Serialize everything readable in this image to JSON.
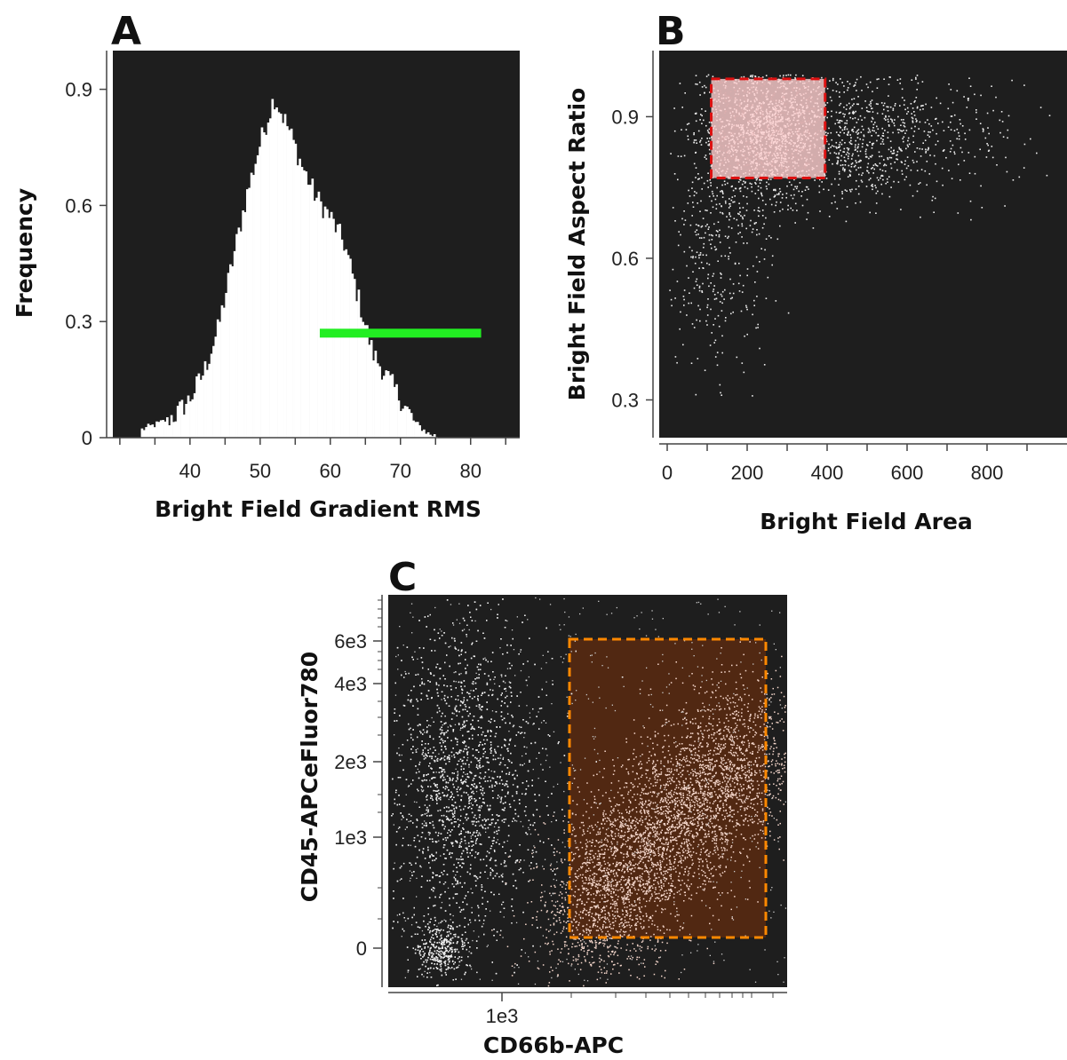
{
  "chart_data": [
    {
      "panel": "A",
      "type": "histogram",
      "xlabel": "Bright Field Gradient RMS",
      "ylabel": "Frequency",
      "xlim": [
        29,
        87
      ],
      "ylim": [
        0,
        1.0
      ],
      "xticks": [
        40,
        50,
        60,
        70,
        80
      ],
      "yticks": [
        0,
        0.3,
        0.6,
        0.9
      ],
      "ytick_labels": [
        "0",
        "0.3",
        "0.6",
        "0.9"
      ],
      "background": "#1e1e1e",
      "fill_color": "#ffffff",
      "distribution": {
        "x": [
          33,
          36,
          38,
          40,
          42,
          44,
          46,
          48,
          50,
          52,
          54,
          56,
          58,
          60,
          62,
          64,
          66,
          68,
          70,
          72,
          74,
          76
        ],
        "y": [
          0.02,
          0.04,
          0.06,
          0.1,
          0.17,
          0.28,
          0.45,
          0.62,
          0.76,
          0.88,
          0.8,
          0.7,
          0.62,
          0.57,
          0.5,
          0.36,
          0.22,
          0.16,
          0.1,
          0.04,
          0.01,
          0.0
        ]
      },
      "gate": {
        "type": "horizontal-bar",
        "x": [
          58.5,
          81.5
        ],
        "y": 0.27,
        "color": "#22ee22"
      }
    },
    {
      "panel": "B",
      "type": "scatter",
      "xlabel": "Bright Field Area",
      "ylabel": "Bright Field Aspect Ratio",
      "xlim": [
        -20,
        1000
      ],
      "ylim": [
        0.22,
        1.04
      ],
      "xticks": [
        0,
        200,
        400,
        600,
        800
      ],
      "yticks": [
        0.3,
        0.6,
        0.9
      ],
      "ytick_labels": [
        "0.3",
        "0.6",
        "0.9"
      ],
      "background": "#1e1e1e",
      "point_color": "#eeeeee",
      "gate": {
        "type": "rectangle",
        "x": [
          110,
          395
        ],
        "y": [
          0.77,
          0.98
        ],
        "stroke": "#dd1111",
        "fill": "#ffd0d0",
        "fill_opacity": 0.8
      }
    },
    {
      "panel": "C",
      "type": "scatter",
      "xlabel": "CD66b-APC",
      "ylabel": "CD45-APCeFluor780",
      "xscale": "log",
      "xtick_labels": [
        "1e3"
      ],
      "ytick_labels": [
        "0",
        "1e3",
        "2e3",
        "4e3",
        "6e3"
      ],
      "background": "#1e1e1e",
      "point_color": "#eeeeee",
      "gate": {
        "type": "rectangle",
        "stroke": "#ff8800",
        "fill": "#5a2a10",
        "fill_opacity": 0.85
      },
      "populations": [
        "CD66b-low / CD45-positive cluster",
        "CD66b-high gated population"
      ]
    }
  ],
  "panels": {
    "a": {
      "letter": "A"
    },
    "b": {
      "letter": "B"
    },
    "c": {
      "letter": "C"
    }
  }
}
